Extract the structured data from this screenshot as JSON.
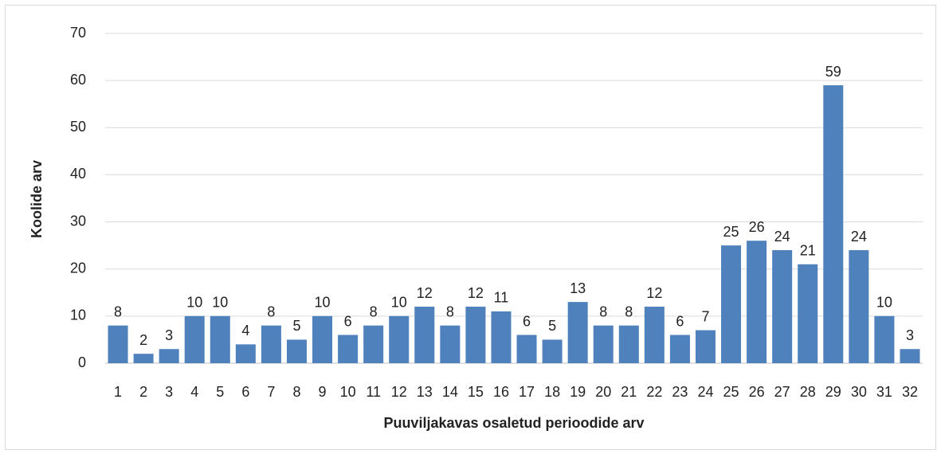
{
  "chart_data": {
    "type": "bar",
    "xlabel": "Puuviljakavas osaletud perioodide arv",
    "ylabel": "Koolide arv",
    "categories": [
      "1",
      "2",
      "3",
      "4",
      "5",
      "6",
      "7",
      "8",
      "9",
      "10",
      "11",
      "12",
      "13",
      "14",
      "15",
      "16",
      "17",
      "18",
      "19",
      "20",
      "21",
      "22",
      "23",
      "24",
      "25",
      "26",
      "27",
      "28",
      "29",
      "30",
      "31",
      "32"
    ],
    "values": [
      8,
      2,
      3,
      10,
      10,
      4,
      8,
      5,
      10,
      6,
      8,
      10,
      12,
      8,
      12,
      11,
      6,
      5,
      13,
      8,
      8,
      12,
      6,
      7,
      25,
      26,
      24,
      21,
      59,
      24,
      10,
      3
    ],
    "color": "#4f81bd",
    "ylim": [
      0,
      70
    ],
    "yticks": [
      0,
      10,
      20,
      30,
      40,
      50,
      60,
      70
    ],
    "grid": true
  }
}
